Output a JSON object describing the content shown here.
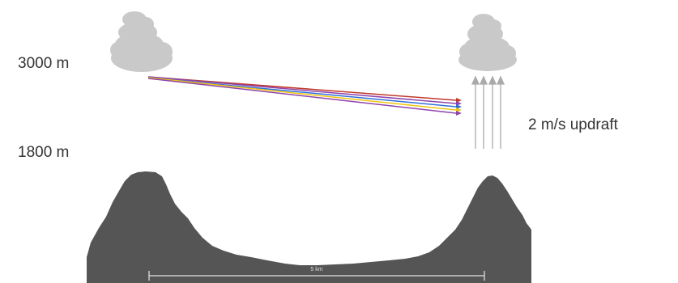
{
  "labels": {
    "altitude_top": "3000 m",
    "altitude_bottom": "1800 m",
    "updraft": "2 m/s updraft",
    "distance": "5 km"
  },
  "colors": {
    "cloud": "#c9c9c9",
    "terrain": "#555555",
    "updraft_arrows": "#aaaaaa",
    "scale_bar": "#cccccc",
    "trajectories": [
      "#c0392b",
      "#8e44ad",
      "#2f6fd6",
      "#f1c40f",
      "#8e44ad"
    ]
  },
  "icons": {
    "left_cloud": "cloud-icon",
    "right_cloud": "cloud-icon",
    "updraft": "arrow-up-icon"
  }
}
